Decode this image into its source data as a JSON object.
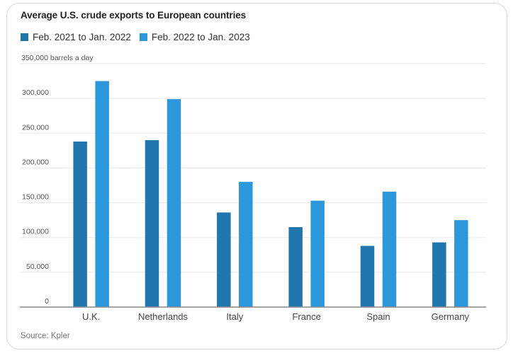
{
  "chart_data": {
    "type": "bar",
    "title": "Average U.S. crude exports to European countries",
    "ylabel": "barrels a day",
    "xlabel": "",
    "ylim": [
      0,
      350000
    ],
    "yticks": [
      0,
      50000,
      100000,
      150000,
      200000,
      250000,
      300000,
      350000
    ],
    "ytick_labels": [
      "0",
      "50,000",
      "100,000",
      "150,000",
      "200,000",
      "250,000",
      "300,000",
      "350,000 barrels a day"
    ],
    "grid": true,
    "legend_position": "top-left",
    "categories": [
      "U.K.",
      "Netherlands",
      "Italy",
      "France",
      "Spain",
      "Germany"
    ],
    "series": [
      {
        "name": "Feb. 2021 to Jan. 2022",
        "color": "#2176ae",
        "values": [
          238000,
          240000,
          136000,
          115000,
          88000,
          93000
        ]
      },
      {
        "name": "Feb. 2022 to Jan. 2023",
        "color": "#2c98db",
        "values": [
          325000,
          299000,
          180000,
          153000,
          166000,
          125000
        ]
      }
    ],
    "source": "Source: Kpler"
  }
}
